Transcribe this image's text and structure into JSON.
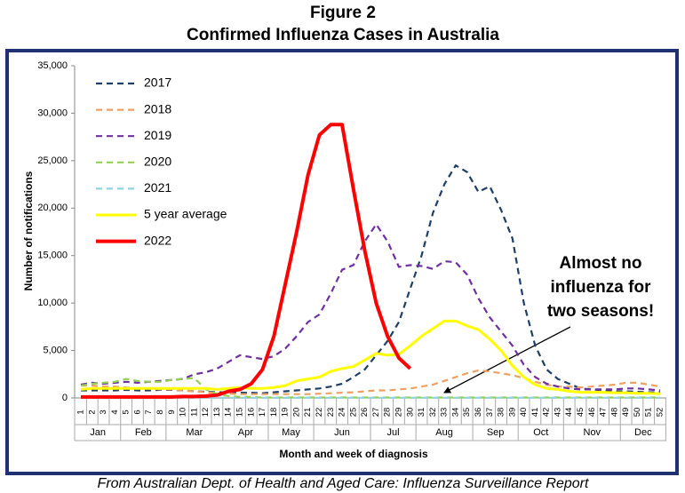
{
  "chart_data": {
    "type": "line",
    "figure_label": "Figure 2",
    "title": "Confirmed Influenza Cases in Australia",
    "y_label": "Number of notifications",
    "x_label": "Month and week of diagnosis",
    "source": "From Australian Dept. of Health and Aged Care: Influenza Surveillance Report",
    "annotation": [
      "Almost no",
      "influenza for",
      "two seasons!"
    ],
    "categories": [
      "1",
      "2",
      "3",
      "4",
      "5",
      "6",
      "7",
      "8",
      "9",
      "10",
      "11",
      "12",
      "13",
      "14",
      "15",
      "16",
      "17",
      "18",
      "19",
      "20",
      "21",
      "22",
      "23",
      "24",
      "25",
      "26",
      "27",
      "28",
      "29",
      "30",
      "31",
      "32",
      "33",
      "34",
      "35",
      "36",
      "37",
      "38",
      "39",
      "40",
      "41",
      "42",
      "43",
      "44",
      "45",
      "46",
      "47",
      "48",
      "49",
      "50",
      "51",
      "52"
    ],
    "months": [
      {
        "label": "Jan",
        "first_week": 1,
        "last_week": 4
      },
      {
        "label": "Feb",
        "first_week": 5,
        "last_week": 8
      },
      {
        "label": "Mar",
        "first_week": 9,
        "last_week": 13
      },
      {
        "label": "Apr",
        "first_week": 14,
        "last_week": 17
      },
      {
        "label": "May",
        "first_week": 18,
        "last_week": 21
      },
      {
        "label": "Jun",
        "first_week": 22,
        "last_week": 26
      },
      {
        "label": "Jul",
        "first_week": 27,
        "last_week": 30
      },
      {
        "label": "Aug",
        "first_week": 31,
        "last_week": 35
      },
      {
        "label": "Sep",
        "first_week": 36,
        "last_week": 39
      },
      {
        "label": "Oct",
        "first_week": 40,
        "last_week": 43
      },
      {
        "label": "Nov",
        "first_week": 44,
        "last_week": 48
      },
      {
        "label": "Dec",
        "first_week": 49,
        "last_week": 52
      }
    ],
    "ylim": [
      0,
      35000
    ],
    "yticks": [
      0,
      {
        "value": 5000,
        "label": "5,000"
      },
      {
        "value": 10000,
        "label": "10,000"
      },
      {
        "value": 15000,
        "label": "15,000"
      },
      {
        "value": 20000,
        "label": "20,000"
      },
      {
        "value": 25000,
        "label": "25,000"
      },
      {
        "value": 30000,
        "label": "30,000"
      },
      {
        "value": 35000,
        "label": "35,000"
      }
    ],
    "grid": false,
    "legend": "top-left",
    "series": [
      {
        "name": "2017",
        "color": "#1f3f66",
        "line_style": "dashed",
        "values": [
          800,
          800,
          800,
          800,
          850,
          800,
          800,
          850,
          850,
          800,
          700,
          650,
          600,
          600,
          550,
          550,
          500,
          600,
          700,
          800,
          900,
          1000,
          1200,
          1500,
          2200,
          3000,
          4500,
          6000,
          8000,
          11500,
          15000,
          19500,
          22500,
          24500,
          23800,
          21700,
          22300,
          19800,
          16800,
          10000,
          5500,
          3000,
          2000,
          1500,
          1000,
          900,
          800,
          700,
          700,
          650,
          600,
          600
        ]
      },
      {
        "name": "2018",
        "color": "#f0a060",
        "line_style": "dashed",
        "values": [
          1300,
          1300,
          1200,
          1200,
          1100,
          1000,
          1000,
          900,
          900,
          800,
          700,
          600,
          500,
          450,
          400,
          400,
          400,
          400,
          400,
          400,
          400,
          450,
          500,
          550,
          600,
          700,
          800,
          800,
          900,
          1000,
          1200,
          1400,
          1800,
          2200,
          2600,
          2900,
          2800,
          2600,
          2400,
          2100,
          1700,
          1400,
          1200,
          1200,
          1100,
          1200,
          1300,
          1400,
          1600,
          1600,
          1400,
          1200
        ]
      },
      {
        "name": "2019",
        "color": "#7030a0",
        "line_style": "dashed",
        "values": [
          1400,
          1600,
          1500,
          1600,
          1700,
          1600,
          1700,
          1800,
          1900,
          2000,
          2500,
          2700,
          3100,
          3800,
          4500,
          4300,
          4100,
          4400,
          5200,
          6500,
          8000,
          8800,
          11000,
          13500,
          14000,
          16500,
          18300,
          16500,
          13800,
          14000,
          13900,
          13600,
          14400,
          14300,
          13000,
          10500,
          8500,
          7000,
          5500,
          3500,
          2200,
          1500,
          1200,
          1000,
          900,
          900,
          900,
          900,
          1000,
          1000,
          900,
          800
        ]
      },
      {
        "name": "2020",
        "color": "#92d050",
        "line_style": "dashed",
        "values": [
          1300,
          1500,
          1600,
          1700,
          2000,
          1800,
          1700,
          1700,
          1900,
          2000,
          2100,
          900,
          400,
          200,
          100,
          100,
          50,
          50,
          50,
          50,
          50,
          50,
          50,
          50,
          50,
          50,
          50,
          50,
          50,
          50,
          50,
          50,
          50,
          50,
          50,
          50,
          50,
          50,
          50,
          50,
          50,
          50,
          50,
          50,
          50,
          50,
          50,
          50,
          50,
          50,
          50,
          50
        ]
      },
      {
        "name": "2021",
        "color": "#8fd3e0",
        "line_style": "dashed",
        "values": [
          20,
          20,
          20,
          20,
          20,
          20,
          20,
          20,
          20,
          20,
          20,
          20,
          20,
          20,
          20,
          20,
          20,
          20,
          20,
          20,
          20,
          20,
          20,
          20,
          20,
          20,
          20,
          20,
          20,
          20,
          20,
          20,
          20,
          20,
          20,
          20,
          20,
          20,
          20,
          20,
          20,
          20,
          20,
          20,
          20,
          20,
          20,
          20,
          20,
          20,
          20,
          20
        ]
      },
      {
        "name": "5 year average",
        "color": "#ffff00",
        "line_style": "solid",
        "values": [
          900,
          1000,
          1000,
          1000,
          1000,
          1000,
          1000,
          1000,
          1000,
          1000,
          1000,
          1000,
          900,
          1000,
          1100,
          1000,
          1000,
          1100,
          1300,
          1800,
          2000,
          2200,
          2800,
          3100,
          3300,
          4000,
          4700,
          4500,
          4600,
          5500,
          6500,
          7300,
          8100,
          8100,
          7600,
          7200,
          6200,
          5000,
          3400,
          2200,
          1400,
          1000,
          900,
          700,
          600,
          600,
          600,
          550,
          550,
          500,
          500,
          450
        ]
      },
      {
        "name": "2022",
        "color": "#ff0000",
        "line_style": "bold",
        "values": [
          100,
          100,
          100,
          100,
          100,
          100,
          100,
          100,
          100,
          150,
          150,
          200,
          300,
          700,
          900,
          1500,
          3000,
          6500,
          12000,
          17500,
          23500,
          27700,
          28800,
          28800,
          22000,
          15500,
          10000,
          6500,
          4200,
          3100,
          null,
          null,
          null,
          null,
          null,
          null,
          null,
          null,
          null,
          null,
          null,
          null,
          null,
          null,
          null,
          null,
          null,
          null,
          null,
          null,
          null,
          null
        ]
      }
    ]
  }
}
